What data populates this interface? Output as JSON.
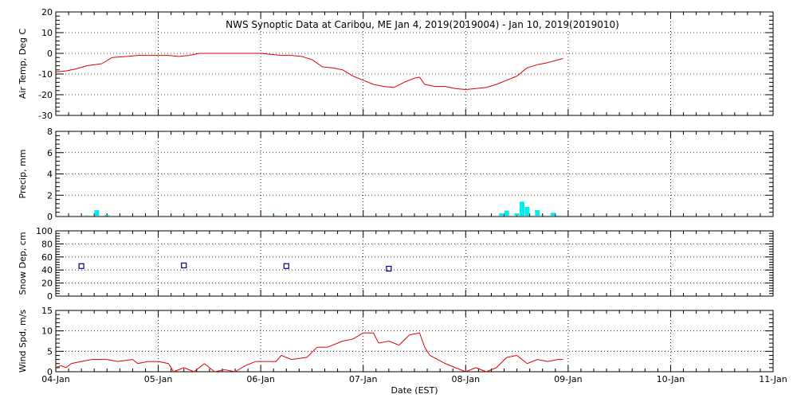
{
  "title": "NWS Synoptic Data at Caribou, ME   Jan  4, 2019(2019004) - Jan 10, 2019(2019010)",
  "xlabel": "Date (EST)",
  "x_ticks": [
    "04-Jan",
    "05-Jan",
    "06-Jan",
    "07-Jan",
    "08-Jan",
    "09-Jan",
    "10-Jan",
    "11-Jan"
  ],
  "colors": {
    "temp": "#dd0000",
    "precip": "#00eeee",
    "snow": "#000080",
    "wind": "#dd0000"
  },
  "chart_data": [
    {
      "type": "line",
      "name": "air-temp",
      "ylabel": "Air Temp, Deg C",
      "ylim": [
        -30,
        20
      ],
      "yticks": [
        20,
        10,
        0,
        -10,
        -20,
        -30
      ],
      "xlim": [
        0,
        7
      ],
      "grid": true,
      "x": [
        0,
        0.1,
        0.2,
        0.3,
        0.45,
        0.55,
        0.7,
        0.8,
        0.9,
        1.1,
        1.2,
        1.3,
        1.4,
        1.5,
        1.6,
        1.7,
        1.8,
        2.0,
        2.1,
        2.2,
        2.3,
        2.4,
        2.5,
        2.6,
        2.7,
        2.8,
        2.9,
        3.0,
        3.1,
        3.2,
        3.3,
        3.4,
        3.5,
        3.55,
        3.6,
        3.7,
        3.8,
        3.9,
        4.0,
        4.1,
        4.2,
        4.3,
        4.4,
        4.5,
        4.6,
        4.7,
        4.8,
        4.95
      ],
      "series": [
        {
          "name": "",
          "values": [
            -9,
            -8.5,
            -7.5,
            -6,
            -5,
            -2,
            -1.5,
            -1,
            -1,
            -1,
            -1.5,
            -1,
            0,
            0,
            0,
            0,
            0,
            0,
            -0.5,
            -1,
            -1,
            -1.5,
            -3,
            -6.5,
            -7,
            -8,
            -11,
            -13,
            -15,
            -16,
            -16.5,
            -14,
            -12,
            -11.5,
            -15,
            -16,
            -16,
            -17,
            -17.5,
            -17,
            -16.5,
            -15,
            -13,
            -11,
            -7,
            -5.5,
            -4.5,
            -2.5
          ]
        }
      ]
    },
    {
      "type": "bar",
      "name": "precip",
      "ylabel": "Precip, mm",
      "ylim": [
        0,
        8
      ],
      "yticks": [
        8,
        6,
        4,
        2,
        0
      ],
      "xlim": [
        0,
        7
      ],
      "grid": true,
      "x": [
        0.3,
        0.4,
        0.5,
        2.15,
        4.35,
        4.4,
        4.5,
        4.55,
        4.6,
        4.7,
        4.75,
        4.85,
        4.9
      ],
      "series": [
        {
          "name": "",
          "values": [
            0.1,
            0.6,
            0.15,
            0.1,
            0.3,
            0.55,
            0.3,
            1.4,
            0.9,
            0.6,
            0.1,
            0.35,
            0.1
          ]
        }
      ]
    },
    {
      "type": "scatter",
      "name": "snow-depth",
      "ylabel": "Snow Dep, cm",
      "ylim": [
        0,
        100
      ],
      "yticks": [
        100,
        80,
        60,
        40,
        20,
        0
      ],
      "xlim": [
        0,
        7
      ],
      "grid": true,
      "x": [
        0.25,
        1.25,
        2.25,
        3.25
      ],
      "series": [
        {
          "name": "",
          "values": [
            46,
            47,
            46,
            42
          ]
        }
      ]
    },
    {
      "type": "line",
      "name": "wind-speed",
      "ylabel": "Wind Spd, m/s",
      "ylim": [
        0,
        15
      ],
      "yticks": [
        15,
        10,
        5,
        0
      ],
      "xlim": [
        0,
        7
      ],
      "grid": true,
      "x": [
        0,
        0.05,
        0.1,
        0.15,
        0.25,
        0.35,
        0.5,
        0.6,
        0.75,
        0.8,
        0.9,
        1.0,
        1.1,
        1.15,
        1.25,
        1.35,
        1.45,
        1.55,
        1.65,
        1.75,
        1.85,
        1.95,
        2.05,
        2.15,
        2.2,
        2.3,
        2.45,
        2.55,
        2.65,
        2.8,
        2.9,
        3.0,
        3.1,
        3.15,
        3.25,
        3.35,
        3.45,
        3.55,
        3.6,
        3.65,
        3.8,
        3.9,
        4.0,
        4.1,
        4.2,
        4.3,
        4.4,
        4.5,
        4.6,
        4.7,
        4.8,
        4.9,
        4.95
      ],
      "series": [
        {
          "name": "",
          "values": [
            1,
            1.5,
            1,
            2,
            2.5,
            3,
            3,
            2.5,
            3,
            2,
            2.5,
            2.5,
            2,
            0,
            1,
            0,
            2,
            0,
            0.5,
            0,
            1.5,
            2.5,
            2.5,
            2.5,
            4,
            3,
            3.5,
            6,
            6,
            7.5,
            8,
            9.5,
            9.5,
            7,
            7.5,
            6.5,
            9,
            9.5,
            6,
            4,
            2,
            1,
            0,
            1,
            0,
            1,
            3.5,
            4,
            2,
            3,
            2.5,
            3,
            3
          ]
        }
      ]
    }
  ]
}
